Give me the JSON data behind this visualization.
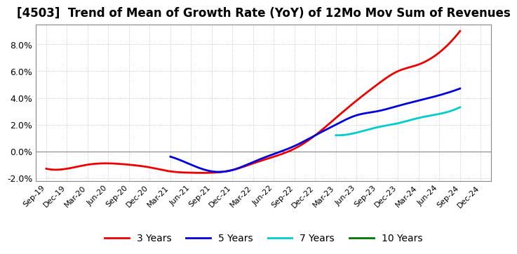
{
  "title": "[4503]  Trend of Mean of Growth Rate (YoY) of 12Mo Mov Sum of Revenues",
  "title_fontsize": 12,
  "ylim": [
    -0.022,
    0.095
  ],
  "yticks": [
    -0.02,
    0.0,
    0.02,
    0.04,
    0.06,
    0.08
  ],
  "ytick_labels": [
    "-2.0%",
    "0.0%",
    "2.0%",
    "4.0%",
    "6.0%",
    "8.0%"
  ],
  "x_labels": [
    "Sep-19",
    "Dec-19",
    "Mar-20",
    "Jun-20",
    "Sep-20",
    "Dec-20",
    "Mar-21",
    "Jun-21",
    "Sep-21",
    "Dec-21",
    "Mar-22",
    "Jun-22",
    "Sep-22",
    "Dec-22",
    "Mar-23",
    "Jun-23",
    "Sep-23",
    "Dec-23",
    "Mar-24",
    "Jun-24",
    "Sep-24",
    "Dec-24"
  ],
  "color_3y": "#ee0000",
  "color_5y": "#0000dd",
  "color_7y": "#00cccc",
  "color_10y": "#007700",
  "background_color": "#ffffff",
  "grid_color": "#aaaaaa",
  "linewidth": 2.0
}
